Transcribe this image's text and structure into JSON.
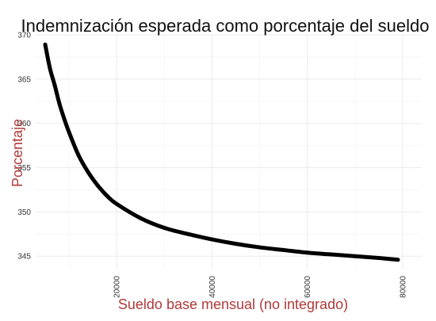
{
  "chart_data": {
    "type": "line",
    "title": "Indemnización esperada como porcentaje del sueldo",
    "xlabel": "Sueldo base mensual (no integrado)",
    "ylabel": "Porcentaje",
    "x_ticks": [
      20000,
      40000,
      60000,
      80000
    ],
    "y_ticks": [
      345,
      350,
      355,
      360,
      365,
      370
    ],
    "x_tick_labels": [
      "20000",
      "40000",
      "60000",
      "80000"
    ],
    "y_tick_labels": [
      "345",
      "350",
      "355",
      "360",
      "365",
      "370"
    ],
    "xlim": [
      3000,
      84000
    ],
    "ylim": [
      343.5,
      370
    ],
    "grid": true,
    "legend": "none",
    "series": [
      {
        "x": [
          5000,
          6000,
          7000,
          8000,
          9000,
          10000,
          12000,
          14000,
          16000,
          18000,
          20000,
          25000,
          30000,
          35000,
          40000,
          45000,
          50000,
          55000,
          60000,
          65000,
          70000,
          75000,
          79000
        ],
        "values": [
          368.9,
          366.2,
          364.3,
          362.2,
          360.5,
          359.0,
          356.4,
          354.5,
          353.0,
          351.8,
          350.9,
          349.3,
          348.2,
          347.5,
          346.9,
          346.4,
          346.0,
          345.7,
          345.4,
          345.2,
          345.0,
          344.8,
          344.6
        ]
      }
    ],
    "colors": {
      "line": "#000000",
      "axis_title": "#b03a3a",
      "title": "#111111",
      "grid": "#ebebeb"
    }
  }
}
